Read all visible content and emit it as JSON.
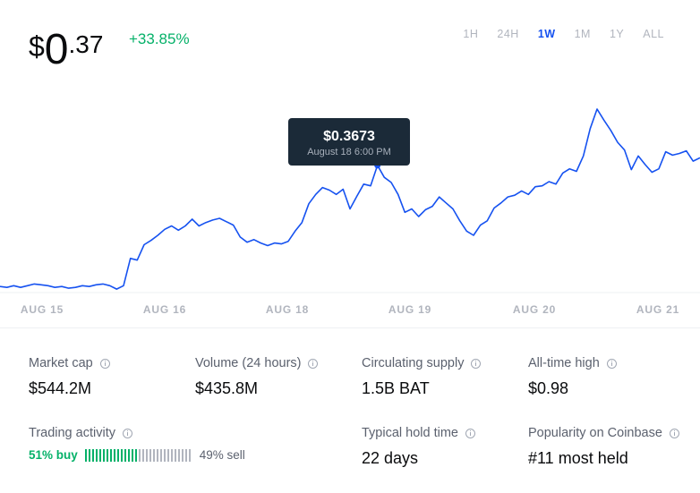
{
  "price": {
    "symbol": "$",
    "integer": "0",
    "decimal": ".37",
    "change": "+33.85%"
  },
  "ranges": [
    {
      "label": "1H",
      "active": false
    },
    {
      "label": "24H",
      "active": false
    },
    {
      "label": "1W",
      "active": true
    },
    {
      "label": "1M",
      "active": false
    },
    {
      "label": "1Y",
      "active": false
    },
    {
      "label": "ALL",
      "active": false
    }
  ],
  "tooltip": {
    "value": "$0.3673",
    "date": "August 18 6:00 PM"
  },
  "chart_data": {
    "type": "line",
    "x_tick_labels": [
      "AUG 15",
      "AUG 16",
      "AUG 18",
      "AUG 19",
      "AUG 20",
      "AUG 21"
    ],
    "line_color": "#1652f0",
    "highlight_index": 55,
    "series": [
      {
        "values": [
          0.225,
          0.224,
          0.226,
          0.224,
          0.226,
          0.228,
          0.227,
          0.226,
          0.224,
          0.225,
          0.223,
          0.224,
          0.226,
          0.225,
          0.227,
          0.228,
          0.226,
          0.222,
          0.226,
          0.258,
          0.256,
          0.274,
          0.279,
          0.285,
          0.292,
          0.296,
          0.291,
          0.296,
          0.304,
          0.296,
          0.3,
          0.303,
          0.305,
          0.301,
          0.297,
          0.283,
          0.277,
          0.28,
          0.276,
          0.273,
          0.276,
          0.275,
          0.278,
          0.29,
          0.3,
          0.322,
          0.333,
          0.341,
          0.338,
          0.333,
          0.339,
          0.316,
          0.331,
          0.345,
          0.343,
          0.367,
          0.353,
          0.347,
          0.333,
          0.312,
          0.316,
          0.307,
          0.315,
          0.319,
          0.33,
          0.323,
          0.316,
          0.302,
          0.29,
          0.285,
          0.297,
          0.302,
          0.317,
          0.323,
          0.33,
          0.332,
          0.337,
          0.333,
          0.342,
          0.343,
          0.348,
          0.345,
          0.358,
          0.363,
          0.36,
          0.378,
          0.41,
          0.433,
          0.42,
          0.408,
          0.394,
          0.385,
          0.362,
          0.378,
          0.368,
          0.359,
          0.363,
          0.383,
          0.379,
          0.381,
          0.384,
          0.372,
          0.376
        ]
      }
    ]
  },
  "stats": [
    {
      "label": "Market cap",
      "value": "$544.2M"
    },
    {
      "label": "Volume (24 hours)",
      "value": "$435.8M"
    },
    {
      "label": "Circulating supply",
      "value": "1.5B BAT"
    },
    {
      "label": "All-time high",
      "value": "$0.98"
    },
    {
      "label": "Trading activity"
    },
    {
      "label": "Typical hold time",
      "value": "22 days"
    },
    {
      "label": "Popularity on Coinbase",
      "value": "#11 most held"
    }
  ],
  "trading_activity": {
    "buy_label": "51% buy",
    "sell_label": "49% sell",
    "buy_percent": 51,
    "buy_color": "#05b169",
    "sell_color": "#b1b5be"
  }
}
